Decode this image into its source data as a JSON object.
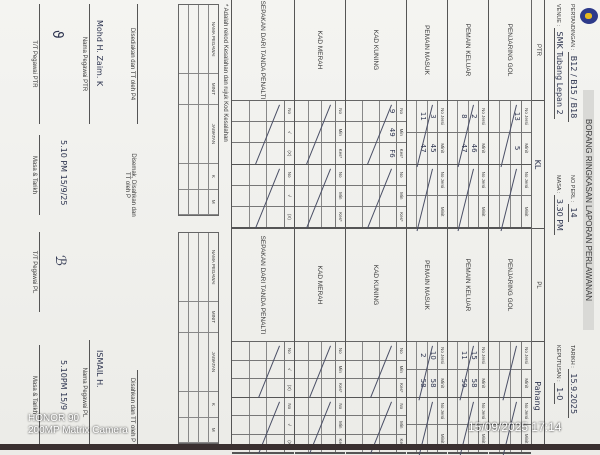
{
  "form": {
    "title": "BORANG RINGKASAN LAPORAN PERLAWANAN",
    "pertandingan_label": "PERTANDINGAN :",
    "pertandingan": "B12 / B15 / B18",
    "no_perl_label": "NO PERL :",
    "no_perl": "14",
    "tarikh_label": "TARIKH :",
    "tarikh": "15.9.2025",
    "venue_label": "VENUE :",
    "venue": "SMK Tubang Lepan 2",
    "masa_label": "MASA :",
    "masa": "3.30 PM",
    "keputusan_label": "KEPUTUSAN :",
    "keputusan": "1-0",
    "ptr_label": "PTR",
    "ptr_team": "KL",
    "pl_label": "PL",
    "pl_team": "Pahang"
  },
  "sections": [
    {
      "label": "PENJARING GOL",
      "cols": [
        "No Jersi",
        "Minit"
      ],
      "ptr": [
        [
          "13",
          "5"
        ],
        [
          "",
          ""
        ],
        [
          "",
          ""
        ]
      ],
      "pl": [
        [
          "",
          ""
        ],
        [
          "",
          ""
        ],
        [
          "",
          ""
        ]
      ]
    },
    {
      "label": "PEMAIN KELUAR",
      "cols": [
        "No Jersi",
        "Minit"
      ],
      "ptr": [
        [
          "2",
          "46"
        ],
        [
          "8",
          "47"
        ],
        [
          "",
          ""
        ]
      ],
      "pl": [
        [
          "15",
          "58"
        ],
        [
          "11",
          "59"
        ],
        [
          "",
          ""
        ]
      ]
    },
    {
      "label": "PEMAIN MASUK",
      "cols": [
        "No Jersi",
        "Minit"
      ],
      "ptr": [
        [
          "3",
          "45"
        ],
        [
          "11",
          "47"
        ],
        [
          "",
          ""
        ]
      ],
      "pl": [
        [
          "10",
          "58"
        ],
        [
          "2",
          "58"
        ],
        [
          "",
          ""
        ]
      ]
    },
    {
      "label": "KAD KUNING",
      "cols": [
        "No",
        "Min",
        "Kes*"
      ],
      "ptr": [
        [
          "9",
          "49",
          "F6"
        ],
        [
          "",
          "",
          ""
        ],
        [
          "",
          "",
          ""
        ]
      ],
      "pl": [
        [
          "",
          "",
          ""
        ],
        [
          "",
          "",
          ""
        ],
        [
          "",
          "",
          ""
        ]
      ]
    },
    {
      "label": "KAD MERAH",
      "cols": [
        "No",
        "Min",
        "Kes*"
      ],
      "ptr": [
        [
          "",
          "",
          ""
        ],
        [
          "",
          "",
          ""
        ],
        [
          "",
          "",
          ""
        ]
      ],
      "pl": [
        [
          "",
          "",
          ""
        ],
        [
          "",
          "",
          ""
        ],
        [
          "",
          "",
          ""
        ]
      ]
    },
    {
      "label": "SEPAKAN DARI TANDA PENALTI",
      "cols": [
        "No",
        "√",
        "(X)"
      ],
      "ptr": [
        [
          "",
          "",
          ""
        ],
        [
          "",
          "",
          ""
        ],
        [
          "",
          "",
          ""
        ]
      ],
      "pl": [
        [
          "",
          "",
          ""
        ],
        [
          "",
          "",
          ""
        ],
        [
          "",
          "",
          ""
        ]
      ]
    }
  ],
  "note": "* Adalah rekod Kesalahan dan rujuk Kod Kesalahan",
  "officials_cols": [
    "NAMA PEGAWAI",
    "MINIT",
    "JAWATAN",
    "K",
    "M"
  ],
  "ptr_sign": {
    "prepared": "Disediakan dan TT oleh P4",
    "name_hw": "Mohd H. Zaim. K",
    "name_label": "Nama Pegawai PTR",
    "sign_label": "T/T Pegawai PTR",
    "time_hw": "5.10 PM 15/9/25",
    "time_label": "Masa & Tarikh"
  },
  "pl_sign": {
    "checked": "Disemak, Disahkan dan TT oleh P",
    "name_hw": "ISMAIL H.",
    "name_label": "Nama Pegawai PL",
    "sign_label": "T/T Pegawai PL",
    "time_hw": "5.10PM 15/9",
    "time_label": "Masa & Tarikh",
    "verified": "Disahkan dan TT oleh P"
  },
  "camera": {
    "model": "HONOR 90",
    "lens": "200MP Matrix Camera",
    "timestamp": "15/09/2025 17:14"
  }
}
